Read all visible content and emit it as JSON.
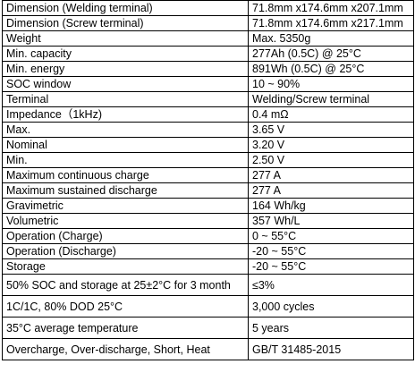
{
  "rows": [
    {
      "label": "Dimension (Welding terminal)",
      "value": "71.8mm x174.6mm x207.1mm",
      "tall": false
    },
    {
      "label": "Dimension (Screw terminal)",
      "value": "71.8mm x174.6mm x217.1mm",
      "tall": false
    },
    {
      "label": "Weight",
      "value": "Max. 5350g",
      "tall": false
    },
    {
      "label": "Min. capacity",
      "value": "277Ah (0.5C) @ 25°C",
      "tall": false
    },
    {
      "label": "Min. energy",
      "value": "891Wh (0.5C) @ 25°C",
      "tall": false
    },
    {
      "label": "SOC window",
      "value": "10 ~ 90%",
      "tall": false
    },
    {
      "label": "Terminal",
      "value": "Welding/Screw terminal",
      "tall": false
    },
    {
      "label": "Impedance（1kHz)",
      "value": "0.4 mΩ",
      "tall": false
    },
    {
      "label": "Max.",
      "value": "3.65 V",
      "tall": false
    },
    {
      "label": "Nominal",
      "value": "3.20 V",
      "tall": false
    },
    {
      "label": "Min.",
      "value": "2.50 V",
      "tall": false
    },
    {
      "label": "Maximum continuous charge",
      "value": "277 A",
      "tall": false
    },
    {
      "label": "Maximum sustained discharge",
      "value": "277 A",
      "tall": false
    },
    {
      "label": "Gravimetric",
      "value": "164 Wh/kg",
      "tall": false
    },
    {
      "label": "Volumetric",
      "value": "357 Wh/L",
      "tall": false
    },
    {
      "label": "Operation (Charge)",
      "value": "0 ~ 55°C",
      "tall": false
    },
    {
      "label": "Operation (Discharge)",
      "value": "-20 ~ 55°C",
      "tall": false
    },
    {
      "label": "Storage",
      "value": "-20 ~ 55°C",
      "tall": false
    },
    {
      "label": "50% SOC and storage at 25±2°C for 3 month",
      "value": "≤3%",
      "tall": true
    },
    {
      "label": "1C/1C, 80% DOD 25°C",
      "value": "3,000 cycles",
      "tall": true
    },
    {
      "label": "35°C average temperature",
      "value": "5 years",
      "tall": true
    },
    {
      "label": "Overcharge, Over-discharge, Short, Heat",
      "value": "GB/T 31485-2015",
      "tall": true
    }
  ]
}
